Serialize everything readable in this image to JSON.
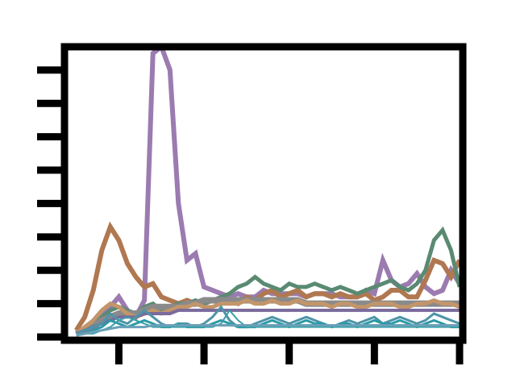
{
  "chart_data": {
    "type": "line",
    "title": "",
    "xlabel": "",
    "ylabel": "",
    "xlim": [
      0,
      46
    ],
    "ylim": [
      0,
      8.6
    ],
    "grid": false,
    "legend": "none",
    "x_ticks": [
      6,
      16,
      26,
      36,
      46
    ],
    "y_ticks": [
      0,
      1,
      2,
      3,
      4,
      5,
      6,
      7,
      8
    ],
    "tick_labels_visible": false,
    "x": [
      1,
      2,
      3,
      4,
      5,
      6,
      7,
      8,
      9,
      10,
      11,
      12,
      13,
      14,
      15,
      16,
      17,
      18,
      19,
      20,
      21,
      22,
      23,
      24,
      25,
      26,
      27,
      28,
      29,
      30,
      31,
      32,
      33,
      34,
      35,
      36,
      37,
      38,
      39,
      40,
      41,
      42,
      43,
      44,
      45,
      46
    ],
    "series": [
      {
        "color": "#9b7bb0",
        "width": 6,
        "values": [
          0.1,
          0.2,
          0.3,
          0.6,
          0.9,
          1.2,
          0.8,
          0.6,
          1.1,
          8.5,
          8.7,
          8.0,
          4.0,
          2.3,
          2.5,
          1.5,
          1.4,
          1.3,
          1.2,
          1.3,
          1.2,
          1.2,
          1.4,
          1.3,
          1.3,
          1.3,
          1.3,
          1.2,
          1.3,
          1.3,
          1.3,
          1.2,
          1.2,
          1.2,
          1.4,
          1.3,
          2.3,
          1.7,
          1.5,
          1.6,
          1.9,
          1.5,
          1.3,
          1.4,
          2.0,
          1.6
        ]
      },
      {
        "color": "#b07850",
        "width": 6,
        "values": [
          0.2,
          0.6,
          1.4,
          2.6,
          3.3,
          2.9,
          2.2,
          1.8,
          1.5,
          1.6,
          1.2,
          1.1,
          1.0,
          1.1,
          1.0,
          1.0,
          1.1,
          1.0,
          1.1,
          1.0,
          1.2,
          1.1,
          1.3,
          1.4,
          1.2,
          1.3,
          1.4,
          1.2,
          1.3,
          1.3,
          1.2,
          1.3,
          1.2,
          1.2,
          1.3,
          1.1,
          1.2,
          1.4,
          1.4,
          1.2,
          1.2,
          1.7,
          2.3,
          2.2,
          1.8,
          2.3
        ]
      },
      {
        "color": "#5a8a72",
        "width": 5,
        "values": [
          0.1,
          0.2,
          0.4,
          0.6,
          0.8,
          0.9,
          0.8,
          0.7,
          0.9,
          1.0,
          0.8,
          0.9,
          1.0,
          1.0,
          1.1,
          1.0,
          1.1,
          1.2,
          1.3,
          1.5,
          1.6,
          1.8,
          1.6,
          1.5,
          1.4,
          1.6,
          1.5,
          1.5,
          1.6,
          1.5,
          1.4,
          1.5,
          1.4,
          1.3,
          1.4,
          1.5,
          1.6,
          1.7,
          1.5,
          1.4,
          1.6,
          2.0,
          2.9,
          3.2,
          2.6,
          1.5
        ]
      },
      {
        "color": "#8a8a8a",
        "width": 8,
        "values": [
          0.1,
          0.2,
          0.3,
          0.5,
          0.6,
          0.7,
          0.7,
          0.7,
          0.8,
          0.9,
          0.9,
          0.9,
          0.9,
          1.0,
          1.0,
          1.1,
          1.1,
          1.1,
          1.1,
          1.1,
          1.1,
          1.1,
          1.1,
          1.1,
          1.1,
          1.1,
          1.1,
          1.0,
          1.0,
          1.0,
          1.0,
          1.0,
          1.0,
          1.0,
          1.0,
          1.0,
          1.0,
          1.0,
          1.0,
          1.0,
          1.0,
          1.0,
          1.0,
          1.0,
          1.0,
          1.0
        ]
      },
      {
        "color": "#c2956a",
        "width": 5,
        "values": [
          0.1,
          0.3,
          0.5,
          0.8,
          1.0,
          0.9,
          0.7,
          0.6,
          0.7,
          0.8,
          0.7,
          0.8,
          0.9,
          0.9,
          1.0,
          0.9,
          0.9,
          1.0,
          1.0,
          1.0,
          1.1,
          1.0,
          1.0,
          1.1,
          1.0,
          1.0,
          1.1,
          1.0,
          1.0,
          1.0,
          0.9,
          1.0,
          1.0,
          0.9,
          0.9,
          1.0,
          1.0,
          1.0,
          0.9,
          0.9,
          1.0,
          1.0,
          1.1,
          1.0,
          1.0,
          0.9
        ]
      },
      {
        "color": "#7a6a9c",
        "width": 4,
        "values": [
          0.1,
          0.2,
          0.3,
          0.4,
          0.5,
          0.6,
          0.6,
          0.6,
          0.7,
          0.7,
          0.7,
          0.7,
          0.8,
          0.8,
          0.8,
          0.8,
          0.8,
          0.8,
          0.8,
          0.8,
          0.8,
          0.8,
          0.8,
          0.8,
          0.8,
          0.8,
          0.8,
          0.8,
          0.8,
          0.8,
          0.8,
          0.8,
          0.8,
          0.8,
          0.8,
          0.8,
          0.8,
          0.8,
          0.8,
          0.8,
          0.8,
          0.8,
          0.8,
          0.8,
          0.8,
          0.8
        ]
      },
      {
        "color": "#4e94a8",
        "width": 3,
        "values": [
          0.1,
          0.2,
          0.3,
          0.4,
          0.7,
          0.5,
          0.4,
          0.6,
          0.8,
          0.6,
          0.4,
          0.3,
          0.4,
          0.4,
          0.3,
          0.4,
          0.6,
          0.9,
          0.5,
          0.3,
          0.3,
          0.4,
          0.5,
          0.6,
          0.5,
          0.4,
          0.5,
          0.6,
          0.5,
          0.4,
          0.3,
          0.4,
          0.5,
          0.4,
          0.5,
          0.6,
          0.4,
          0.5,
          0.6,
          0.5,
          0.4,
          0.5,
          0.7,
          0.6,
          0.5,
          0.4
        ]
      },
      {
        "color": "#2a9aa5",
        "width": 3,
        "values": [
          0.05,
          0.1,
          0.2,
          0.3,
          0.5,
          0.4,
          0.3,
          0.4,
          0.5,
          0.4,
          0.3,
          0.3,
          0.4,
          0.3,
          0.3,
          0.3,
          0.4,
          0.5,
          0.4,
          0.3,
          0.3,
          0.3,
          0.4,
          0.5,
          0.4,
          0.3,
          0.4,
          0.5,
          0.4,
          0.4,
          0.3,
          0.4,
          0.4,
          0.3,
          0.4,
          0.5,
          0.4,
          0.4,
          0.5,
          0.4,
          0.3,
          0.4,
          0.5,
          0.4,
          0.3,
          0.3
        ]
      },
      {
        "color": "#3aa0a8",
        "width": 2,
        "values": [
          0.05,
          0.1,
          0.1,
          0.2,
          0.3,
          0.5,
          0.6,
          0.5,
          0.4,
          0.3,
          0.3,
          0.3,
          0.3,
          0.3,
          0.3,
          0.3,
          0.3,
          0.4,
          0.8,
          0.5,
          0.3,
          0.3,
          0.3,
          0.3,
          0.3,
          0.3,
          0.3,
          0.3,
          0.3,
          0.3,
          0.3,
          0.3,
          0.3,
          0.3,
          0.3,
          0.3,
          0.3,
          0.3,
          0.3,
          0.3,
          0.3,
          0.3,
          0.3,
          0.3,
          0.3,
          0.3
        ]
      },
      {
        "color": "#6aa0b8",
        "width": 3,
        "values": [
          0.05,
          0.1,
          0.15,
          0.2,
          0.25,
          0.3,
          0.3,
          0.3,
          0.3,
          0.35,
          0.35,
          0.35,
          0.35,
          0.35,
          0.35,
          0.35,
          0.35,
          0.35,
          0.35,
          0.35,
          0.35,
          0.35,
          0.35,
          0.35,
          0.35,
          0.35,
          0.35,
          0.35,
          0.35,
          0.35,
          0.35,
          0.35,
          0.35,
          0.35,
          0.35,
          0.35,
          0.35,
          0.35,
          0.35,
          0.35,
          0.35,
          0.35,
          0.35,
          0.35,
          0.35,
          0.35
        ]
      }
    ]
  }
}
